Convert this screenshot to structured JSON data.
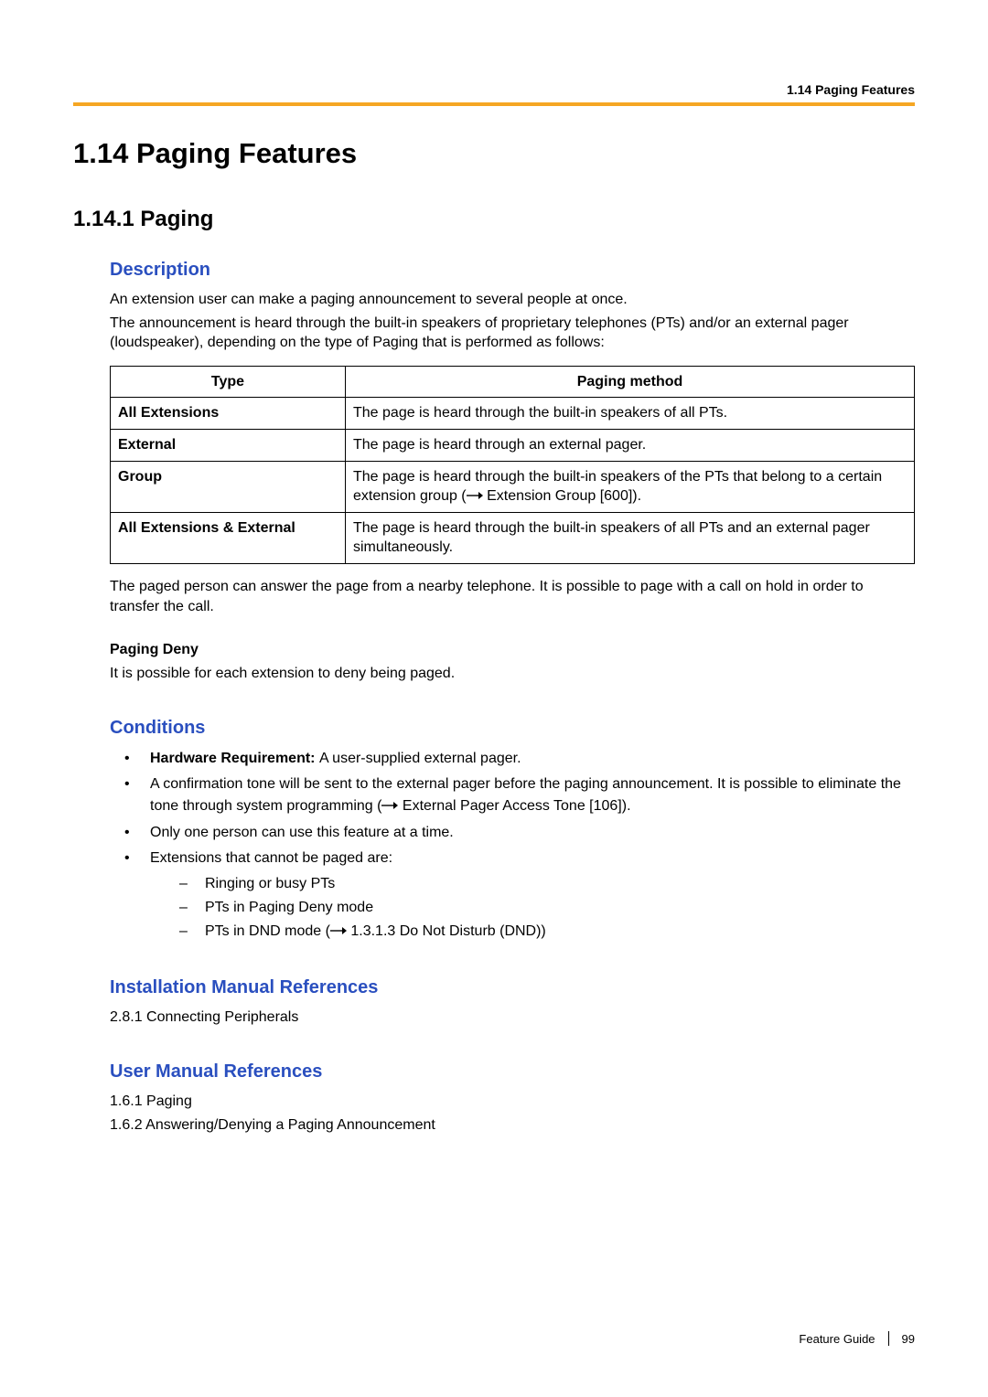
{
  "running_head": "1.14 Paging Features",
  "gold_rule_color": "#f5a623",
  "h1": "1.14   Paging Features",
  "h2": "1.14.1  Paging",
  "description": {
    "heading": "Description",
    "p1": "An extension user can make a paging announcement to several people at once.",
    "p2": "The announcement is heard through the built-in speakers of proprietary telephones (PTs) and/or an external pager (loudspeaker), depending on the type of Paging that is performed as follows:",
    "table": {
      "columns": [
        "Type",
        "Paging method"
      ],
      "rows": [
        {
          "type": "All Extensions",
          "method_parts": [
            "The page is heard through the built-in speakers of all PTs."
          ]
        },
        {
          "type": "External",
          "method_parts": [
            "The page is heard through an external pager."
          ]
        },
        {
          "type": "Group",
          "method_parts": [
            "The page is heard through the built-in speakers of the PTs that belong to a certain extension group (",
            "ARROW",
            " Extension Group [600])."
          ]
        },
        {
          "type": "All Extensions & External",
          "method_parts": [
            "The page is heard through the built-in speakers of all PTs and an external pager simultaneously."
          ]
        }
      ]
    },
    "post_table": "The paged person can answer the page from a nearby telephone. It is possible to page with a call on hold in order to transfer the call.",
    "deny_heading": "Paging Deny",
    "deny_text": "It is possible for each extension to deny being paged."
  },
  "conditions": {
    "heading": "Conditions",
    "items": [
      {
        "parts": [
          {
            "bold": true,
            "text": "Hardware Requirement: "
          },
          {
            "text": "A user-supplied external pager."
          }
        ]
      },
      {
        "parts": [
          {
            "text": "A confirmation tone will be sent to the external pager before the paging announcement. It is possible to eliminate the tone through system programming ("
          },
          {
            "arrow": true
          },
          {
            "text": " External Pager Access Tone [106])."
          }
        ]
      },
      {
        "parts": [
          {
            "text": "Only one person can use this feature at a time."
          }
        ]
      },
      {
        "parts": [
          {
            "text": "Extensions that cannot be paged are:"
          }
        ],
        "sub": [
          {
            "parts": [
              {
                "text": "Ringing or busy PTs"
              }
            ]
          },
          {
            "parts": [
              {
                "text": "PTs in Paging Deny mode"
              }
            ]
          },
          {
            "parts": [
              {
                "text": "PTs in DND mode ("
              },
              {
                "arrow": true
              },
              {
                "text": " 1.3.1.3 Do Not Disturb (DND))"
              }
            ]
          }
        ]
      }
    ]
  },
  "install_refs": {
    "heading": "Installation Manual References",
    "items": [
      "2.8.1 Connecting Peripherals"
    ]
  },
  "user_refs": {
    "heading": "User Manual References",
    "items": [
      "1.6.1 Paging",
      "1.6.2 Answering/Denying a Paging Announcement"
    ]
  },
  "footer": {
    "guide": "Feature Guide",
    "page": "99"
  },
  "colors": {
    "heading_blue": "#2a4fbf",
    "text": "#000000"
  }
}
